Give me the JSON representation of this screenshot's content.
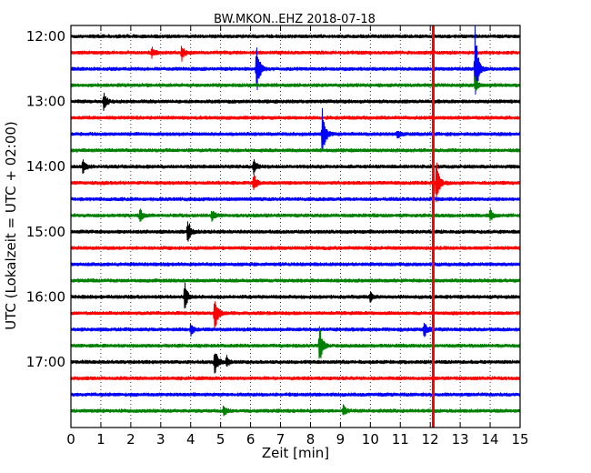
{
  "chart_data": {
    "type": "line",
    "title": "BW.MKON..EHZ 2018-07-18",
    "xlabel": "Zeit  [min]",
    "ylabel": "UTC (Lokalzeit = UTC + 02:00)",
    "xlim": [
      0,
      15
    ],
    "x_ticks": [
      "0",
      "1",
      "2",
      "3",
      "4",
      "5",
      "6",
      "7",
      "8",
      "9",
      "10",
      "11",
      "12",
      "13",
      "14",
      "15"
    ],
    "y_ticks": [
      "12:00",
      "13:00",
      "14:00",
      "15:00",
      "16:00",
      "17:00"
    ],
    "trace_interval_min": 15,
    "trace_count": 24,
    "trace_colors": [
      "#000000",
      "#ff0000",
      "#0000ff",
      "#008000"
    ],
    "grid": "vertical-dotted",
    "marker_line": {
      "x": 12.1,
      "color": "#ff0000"
    },
    "events": [
      {
        "trace": 1,
        "x": 2.7,
        "amp": 0.3
      },
      {
        "trace": 1,
        "x": 3.7,
        "amp": 0.45
      },
      {
        "trace": 2,
        "x": 6.2,
        "amp": 1.6
      },
      {
        "trace": 2,
        "x": 13.5,
        "amp": 2.6
      },
      {
        "trace": 3,
        "x": 13.5,
        "amp": 0.4
      },
      {
        "trace": 4,
        "x": 1.1,
        "amp": 0.5
      },
      {
        "trace": 6,
        "x": 8.4,
        "amp": 1.6
      },
      {
        "trace": 6,
        "x": 10.9,
        "amp": 0.25
      },
      {
        "trace": 8,
        "x": 0.4,
        "amp": 0.45
      },
      {
        "trace": 8,
        "x": 6.1,
        "amp": 0.4
      },
      {
        "trace": 9,
        "x": 6.1,
        "amp": 0.6
      },
      {
        "trace": 9,
        "x": 12.2,
        "amp": 1.4
      },
      {
        "trace": 11,
        "x": 2.3,
        "amp": 0.4
      },
      {
        "trace": 11,
        "x": 4.7,
        "amp": 0.35
      },
      {
        "trace": 11,
        "x": 14.0,
        "amp": 0.35
      },
      {
        "trace": 12,
        "x": 3.9,
        "amp": 0.8
      },
      {
        "trace": 16,
        "x": 3.8,
        "amp": 0.8
      },
      {
        "trace": 16,
        "x": 10.0,
        "amp": 0.25
      },
      {
        "trace": 17,
        "x": 4.8,
        "amp": 1.2
      },
      {
        "trace": 18,
        "x": 4.0,
        "amp": 0.35
      },
      {
        "trace": 18,
        "x": 11.8,
        "amp": 0.45
      },
      {
        "trace": 19,
        "x": 8.3,
        "amp": 1.2
      },
      {
        "trace": 20,
        "x": 4.8,
        "amp": 0.9
      },
      {
        "trace": 20,
        "x": 5.2,
        "amp": 0.3
      },
      {
        "trace": 23,
        "x": 5.1,
        "amp": 0.3
      },
      {
        "trace": 23,
        "x": 9.1,
        "amp": 0.3
      }
    ]
  }
}
